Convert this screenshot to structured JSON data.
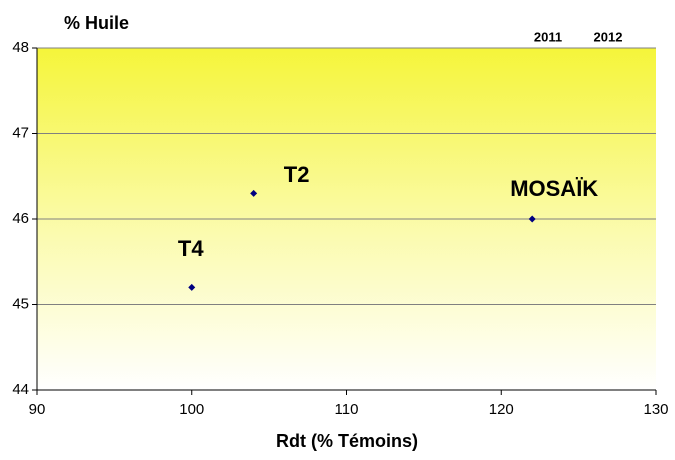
{
  "chart_data": {
    "type": "scatter",
    "title": "% Huile",
    "x_label": "Rdt (% Témoins)",
    "annotations": [
      "2011",
      "2012"
    ],
    "series": [
      {
        "color": "#000080",
        "x": [
          104,
          100,
          122
        ],
        "values": [
          46.3,
          45.2,
          46.0
        ],
        "labels": [
          "T2",
          "T4",
          "MOSAÏK"
        ],
        "label_colors": [
          "#000000",
          "#000000",
          "#3a9a5b"
        ]
      }
    ],
    "xlim": [
      90,
      130
    ],
    "xticks": [
      90,
      100,
      110,
      120,
      130
    ],
    "ylim": [
      44,
      48
    ],
    "yticks": [
      44,
      45,
      46,
      47,
      48
    ],
    "grid": true
  }
}
